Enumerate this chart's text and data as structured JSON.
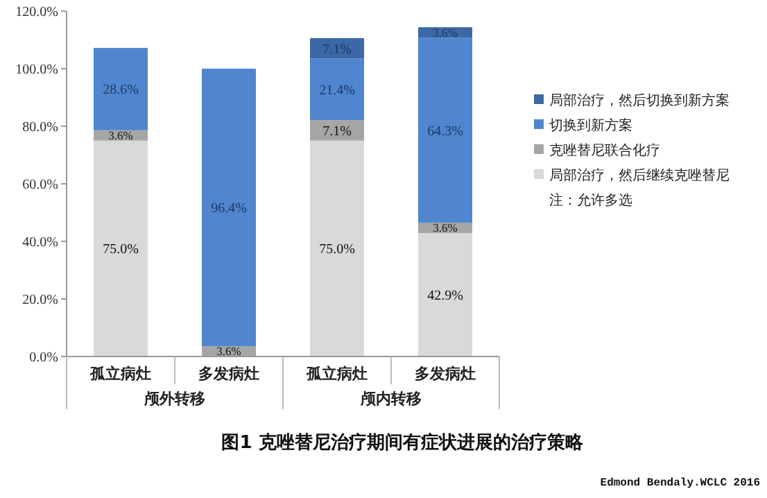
{
  "chart_data": {
    "type": "bar",
    "stacked": true,
    "title": "图1 克唑替尼治疗期间有症状进展的治疗策略",
    "categories": [
      "孤立病灶",
      "多发病灶",
      "孤立病灶",
      "多发病灶"
    ],
    "series": [
      {
        "name": "局部治疗，然后继续克唑替尼",
        "color": "#d9d9d9",
        "values": [
          75.0,
          null,
          75.0,
          42.9
        ],
        "value_labels": [
          "75.0%",
          null,
          "75.0%",
          "42.9%"
        ]
      },
      {
        "name": "克唑替尼联合化疗",
        "color": "#a6a6a6",
        "values": [
          3.6,
          3.6,
          7.1,
          3.6
        ],
        "value_labels": [
          "3.6%",
          "3.6%",
          "7.1%",
          "3.6%"
        ]
      },
      {
        "name": "切换到新方案",
        "color": "#4f86cf",
        "values": [
          28.6,
          96.4,
          21.4,
          64.3
        ],
        "value_labels": [
          "28.6%",
          "96.4%",
          "21.4%",
          "64.3%"
        ]
      },
      {
        "name": "局部治疗，然后切换到新方案",
        "color": "#3b69a5",
        "values": [
          null,
          null,
          7.1,
          3.6
        ],
        "value_labels": [
          null,
          null,
          "7.1%",
          "3.6%"
        ]
      }
    ],
    "ylim": [
      0,
      120
    ],
    "yticks": [
      {
        "value": 0,
        "label": "0.0%"
      },
      {
        "value": 20,
        "label": "20.0%"
      },
      {
        "value": 40,
        "label": "40.0%"
      },
      {
        "value": 60,
        "label": "60.0%"
      },
      {
        "value": 80,
        "label": "80.0%"
      },
      {
        "value": 100,
        "label": "100.0%"
      },
      {
        "value": 120,
        "label": "120.0%"
      }
    ],
    "grid": false,
    "legend": "right",
    "annotations": [
      "颅外转移",
      "颅内转移",
      "注：允许多选",
      "Edmond Bendaly.WCLC 2016"
    ]
  }
}
